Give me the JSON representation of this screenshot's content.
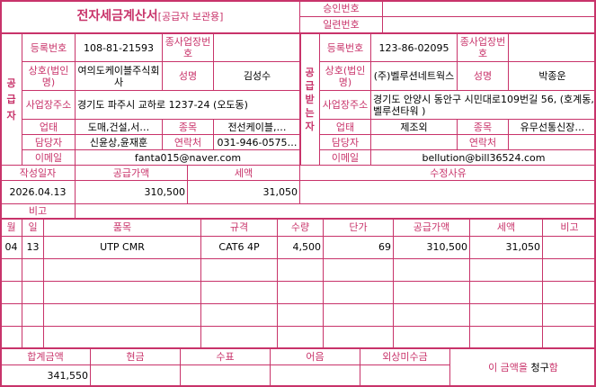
{
  "header": {
    "title": "전자세금계산서",
    "subtitle": "[공급자 보관용]",
    "approval_label": "승인번호",
    "approval_value": "",
    "serial_label": "일련번호",
    "serial_value": ""
  },
  "labels": {
    "reg_no": "등록번호",
    "sub_no": "종사업장번호",
    "company": "상호(법인명)",
    "name": "성명",
    "address": "사업장주소",
    "biz_type": "업태",
    "biz_item": "종목",
    "contact_person": "담당자",
    "phone": "연락처",
    "email": "이메일"
  },
  "supplier": {
    "side_label": "공급자",
    "reg_no": "108-81-21593",
    "sub_no": "",
    "company": "여의도케이블주식회사",
    "name": "김성수",
    "address": "경기도 파주시 교하로 1237-24 (오도동)",
    "biz_type": "도매,건설,서…",
    "biz_item": "전선케이블,…",
    "contact_person": "신윤상,윤재훈",
    "phone": "031-946-0575…",
    "email": "fanta015@naver.com"
  },
  "receiver": {
    "side_label": "공급받는자",
    "reg_no": "123-86-02095",
    "sub_no": "",
    "company": "(주)벨루션네트웍스",
    "name": "박종운",
    "address": "경기도 안양시 동안구 시민대로109번길 56, (호계동,벨루션타워 )",
    "biz_type": "제조외",
    "biz_item": "유무선통신장…",
    "contact_person": "",
    "phone": "",
    "email": "bellution@bill36524.com"
  },
  "summary": {
    "headers": [
      "작성일자",
      "공급가액",
      "세액",
      "수정사유"
    ],
    "date": "2026.04.13",
    "supply_amount": "310,500",
    "tax": "31,050",
    "reason": "",
    "note_label": "비고",
    "note": ""
  },
  "items": {
    "headers": [
      "월",
      "일",
      "품목",
      "규격",
      "수량",
      "단가",
      "공급가액",
      "세액",
      "비고"
    ],
    "rows": [
      [
        "04",
        "13",
        "UTP CMR",
        "CAT6 4P",
        "4,500",
        "69",
        "310,500",
        "31,050",
        ""
      ],
      [
        "",
        "",
        "",
        "",
        "",
        "",
        "",
        "",
        ""
      ],
      [
        "",
        "",
        "",
        "",
        "",
        "",
        "",
        "",
        ""
      ],
      [
        "",
        "",
        "",
        "",
        "",
        "",
        "",
        "",
        ""
      ],
      [
        "",
        "",
        "",
        "",
        "",
        "",
        "",
        "",
        ""
      ]
    ]
  },
  "totals": {
    "headers": [
      "합계금액",
      "현금",
      "수표",
      "어음",
      "외상미수금"
    ],
    "values": [
      "341,550",
      "",
      "",
      "",
      ""
    ],
    "claim_prefix": "이 금액을 ",
    "claim_word": "청구",
    "claim_suffix": "함"
  },
  "colors": {
    "border": "#c8336a",
    "label": "#c8336a"
  }
}
